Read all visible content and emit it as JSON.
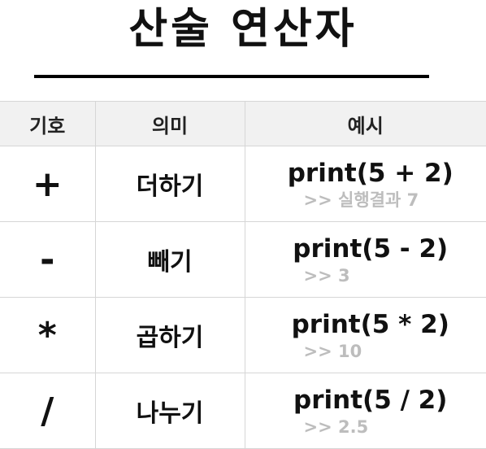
{
  "title": "산술 연산자",
  "table": {
    "headers": [
      "기호",
      "의미",
      "예시"
    ],
    "rows": [
      {
        "symbol": "+",
        "meaning": "더하기",
        "code": "print(5 + 2)",
        "result": ">> 실행결과 7"
      },
      {
        "symbol": "-",
        "meaning": "빼기",
        "code": "print(5 - 2)",
        "result": ">> 3"
      },
      {
        "symbol": "*",
        "meaning": "곱하기",
        "code": "print(5 * 2)",
        "result": ">> 10"
      },
      {
        "symbol": "/",
        "meaning": "나누기",
        "code": "print(5 / 2)",
        "result": ">> 2.5"
      }
    ]
  }
}
